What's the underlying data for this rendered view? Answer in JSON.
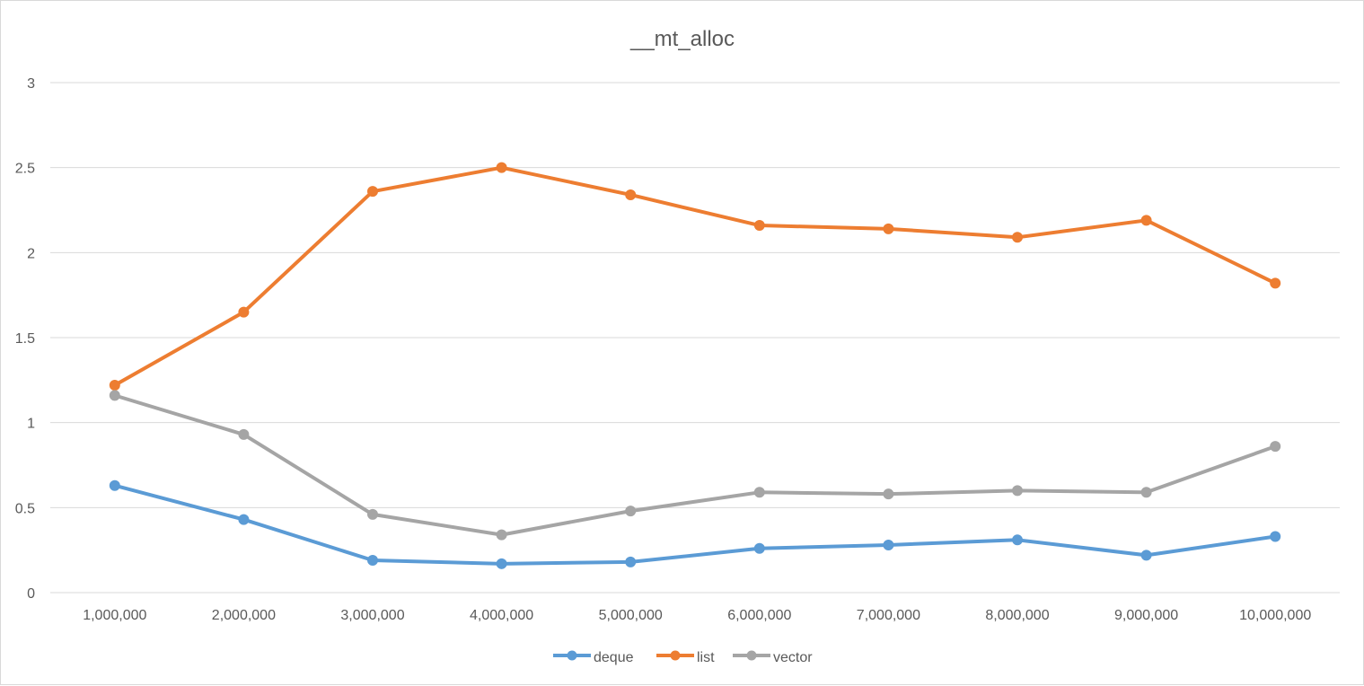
{
  "chart_data": {
    "type": "line",
    "title": "__mt_alloc",
    "xlabel": "",
    "ylabel": "",
    "categories": [
      "1,000,000",
      "2,000,000",
      "3,000,000",
      "4,000,000",
      "5,000,000",
      "6,000,000",
      "7,000,000",
      "8,000,000",
      "9,000,000",
      "10,000,000"
    ],
    "ylim": [
      0,
      3
    ],
    "yticks": [
      0,
      0.5,
      1,
      1.5,
      2,
      2.5,
      3
    ],
    "ytick_labels": [
      "0",
      "0.5",
      "1",
      "1.5",
      "2",
      "2.5",
      "3"
    ],
    "grid": true,
    "legend_position": "bottom",
    "series": [
      {
        "name": "deque",
        "color": "#5b9bd5",
        "values": [
          0.63,
          0.43,
          0.19,
          0.17,
          0.18,
          0.26,
          0.28,
          0.31,
          0.22,
          0.33
        ]
      },
      {
        "name": "list",
        "color": "#ed7d31",
        "values": [
          1.22,
          1.65,
          2.36,
          2.5,
          2.34,
          2.16,
          2.14,
          2.09,
          2.19,
          1.82
        ]
      },
      {
        "name": "vector",
        "color": "#a5a5a5",
        "values": [
          1.16,
          0.93,
          0.46,
          0.34,
          0.48,
          0.59,
          0.58,
          0.6,
          0.59,
          0.86
        ]
      }
    ]
  }
}
